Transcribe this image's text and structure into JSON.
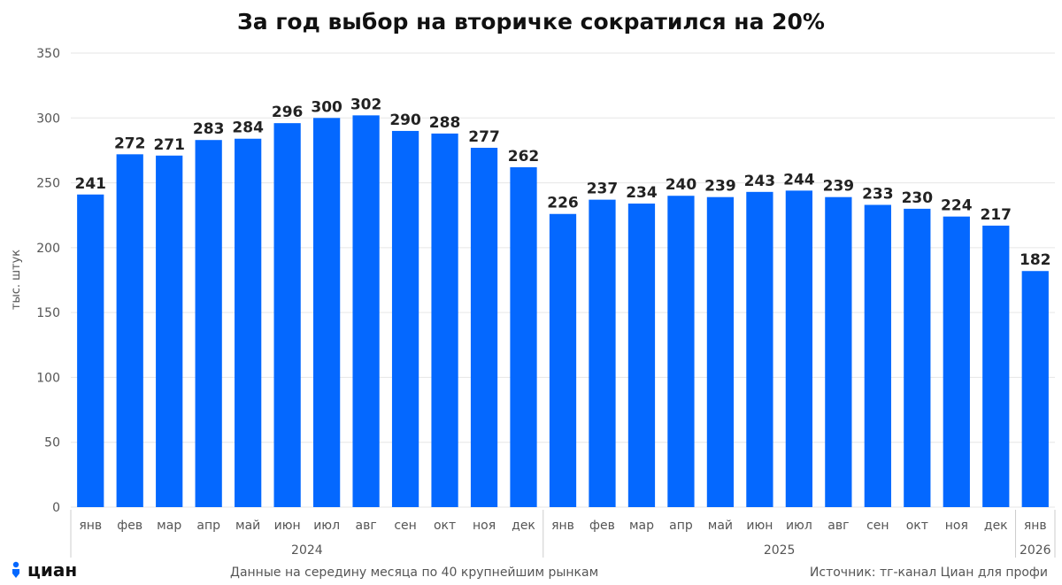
{
  "title": "За год выбор на вторичке сократился на 20%",
  "footer": {
    "note": "Данные на середину месяца по 40 крупнейшим рынкам",
    "source": "Источник: тг-канал Циан для профи",
    "logo_text": "циан",
    "logo_icon": "person-pin-icon"
  },
  "colors": {
    "bar": "#0468FF",
    "grid": "#e6e6e6",
    "logo": "#0468FF"
  },
  "chart_data": {
    "type": "bar",
    "title": "За год выбор на вторичке сократился на 20%",
    "ylabel": "тыс. штук",
    "ylim": [
      0,
      350
    ],
    "yticks": [
      0,
      50,
      100,
      150,
      200,
      250,
      300,
      350
    ],
    "grid": true,
    "categories": [
      "янв",
      "фев",
      "мар",
      "апр",
      "май",
      "июн",
      "июл",
      "авг",
      "сен",
      "окт",
      "ноя",
      "дек",
      "янв",
      "фев",
      "мар",
      "апр",
      "май",
      "июн",
      "июл",
      "авг",
      "сен",
      "окт",
      "ноя",
      "дек",
      "янв"
    ],
    "values": [
      241,
      272,
      271,
      283,
      284,
      296,
      300,
      302,
      290,
      288,
      277,
      262,
      226,
      237,
      234,
      240,
      239,
      243,
      244,
      239,
      233,
      230,
      224,
      217,
      182
    ],
    "groups": [
      {
        "label": "2024",
        "count": 12
      },
      {
        "label": "2025",
        "count": 12
      },
      {
        "label": "2026",
        "count": 1
      }
    ]
  }
}
